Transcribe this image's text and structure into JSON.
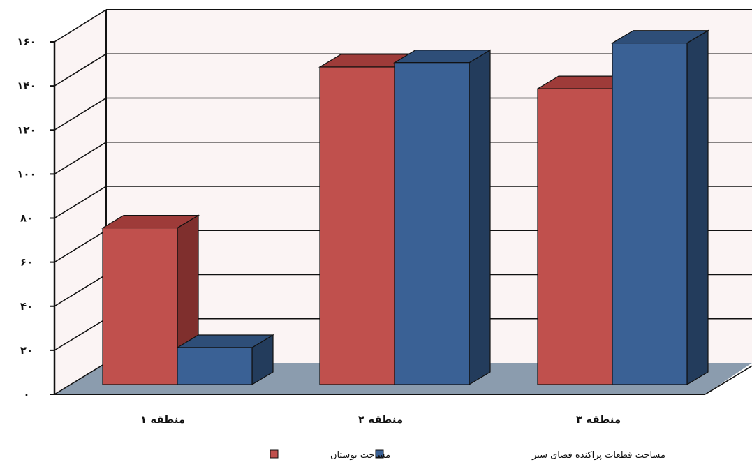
{
  "chart_data": {
    "type": "bar",
    "categories": [
      "منطقه ۱",
      "منطقه ۲",
      "منطقه ۳"
    ],
    "series": [
      {
        "name": "مساحت بوستان",
        "values": [
          72,
          146,
          136
        ],
        "color": "#C0504D",
        "top": "#9E3B39",
        "side": "#7F2F2D"
      },
      {
        "name": "مساحت قطعات پراکنده فضای سبز",
        "values": [
          17,
          148,
          157
        ],
        "color": "#3A6195",
        "top": "#2E4E78",
        "side": "#233C5C"
      }
    ],
    "y_ticks": [
      "۰",
      "۲۰",
      "۴۰",
      "۶۰",
      "۸۰",
      "۱۰۰",
      "۱۲۰",
      "۱۴۰",
      "۱۶۰"
    ],
    "ylim": [
      0,
      160
    ],
    "grid": true,
    "legend_position": "bottom",
    "style": "3d-clustered-column"
  }
}
